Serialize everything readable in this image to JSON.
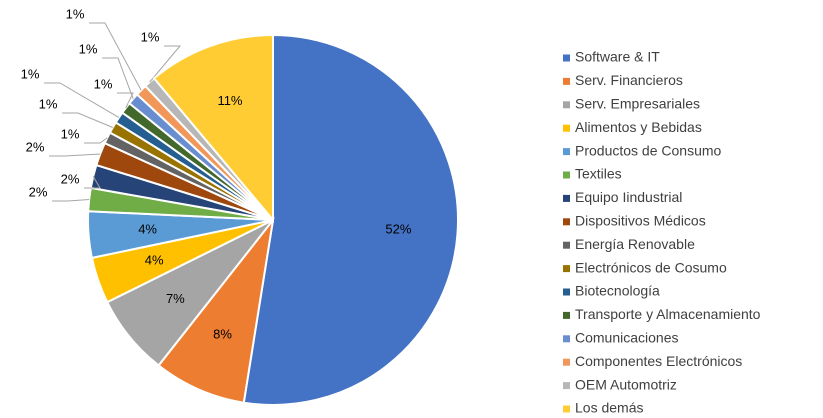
{
  "chart_data": {
    "type": "pie",
    "categories": [
      "Software & IT",
      "Serv. Financieros",
      "Serv. Empresariales",
      "Alimentos y Bebidas",
      "Productos de Consumo",
      "Textiles",
      "Equipo Iindustrial",
      "Dispositivos Médicos",
      "Energía Renovable",
      "Electrónicos de Cosumo",
      "Biotecnología",
      "Transporte y Almacenamiento",
      "Comunicaciones",
      "Componentes Electrónicos",
      "OEM Automotriz",
      "Los demás"
    ],
    "values": [
      52,
      8,
      7,
      4,
      4,
      2,
      2,
      2,
      1,
      1,
      1,
      1,
      1,
      1,
      1,
      11
    ],
    "value_labels": [
      "52%",
      "8%",
      "7%",
      "4%",
      "4%",
      "2%",
      "2%",
      "2%",
      "1%",
      "1%",
      "1%",
      "1%",
      "1%",
      "1%",
      "1%",
      "11%"
    ],
    "colors": [
      "#4472c4",
      "#ed7d31",
      "#a5a5a5",
      "#ffc000",
      "#5b9bd5",
      "#70ad47",
      "#264478",
      "#9e480e",
      "#636363",
      "#997300",
      "#255e91",
      "#43682b",
      "#698ed0",
      "#f1975a",
      "#b7b7b7",
      "#ffcd33"
    ],
    "legend": "right"
  }
}
